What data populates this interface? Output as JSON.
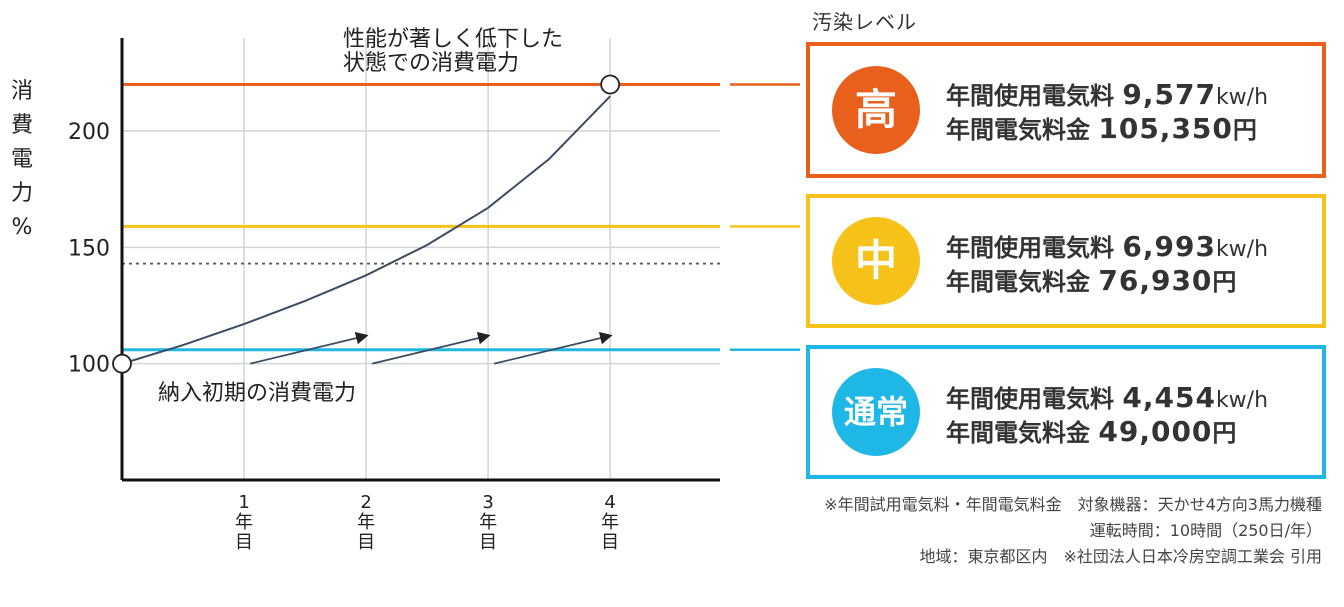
{
  "chart_data": {
    "type": "line",
    "ylabel": [
      "消",
      "費",
      "電",
      "力",
      "%"
    ],
    "yticks": [
      100,
      150,
      200
    ],
    "ylim": [
      50,
      240
    ],
    "xticks": [
      {
        "value": 1,
        "label": [
          "1",
          "年",
          "目"
        ]
      },
      {
        "value": 2,
        "label": [
          "2",
          "年",
          "目"
        ]
      },
      {
        "value": 3,
        "label": [
          "3",
          "年",
          "目"
        ]
      },
      {
        "value": 4,
        "label": [
          "4",
          "年",
          "目"
        ]
      }
    ],
    "xlim": [
      0,
      4.9
    ],
    "series": [
      {
        "x": [
          0,
          0.5,
          1,
          1.5,
          2,
          2.5,
          3,
          3.5,
          4
        ],
        "y": [
          100,
          108,
          117,
          127,
          138,
          151,
          167,
          188,
          215
        ],
        "color": "#3b4d63"
      }
    ],
    "reference_lines": [
      {
        "y": 220,
        "color": "#e8601c",
        "style": "solid"
      },
      {
        "y": 159,
        "color": "#f6c21a",
        "style": "solid"
      },
      {
        "y": 143,
        "color": "#555555",
        "style": "dotted"
      },
      {
        "y": 106,
        "color": "#1fb8e6",
        "style": "solid"
      }
    ],
    "arrows": [
      {
        "x1": 1.05,
        "y1": 100,
        "x2": 2.0,
        "y2": 112
      },
      {
        "x1": 2.05,
        "y1": 100,
        "x2": 3.0,
        "y2": 112
      },
      {
        "x1": 3.05,
        "y1": 100,
        "x2": 4.0,
        "y2": 112
      }
    ],
    "annotations": {
      "top": [
        "性能が著しく低下した",
        "状態での消費電力"
      ],
      "bottom": "納入初期の消費電力"
    },
    "markers": [
      {
        "x": 0,
        "y": 100
      },
      {
        "x": 4,
        "y": 220
      }
    ]
  },
  "panel": {
    "title": "汚染レベル",
    "levels": [
      {
        "badge": "高",
        "color": "#e8601c",
        "usage_label": "年間使用電気料",
        "usage_value": "9,577",
        "usage_unit": "kw/h",
        "cost_label": "年間電気料金",
        "cost_value": "105,350",
        "cost_unit": "円"
      },
      {
        "badge": "中",
        "color": "#f6c21a",
        "usage_label": "年間使用電気料",
        "usage_value": "6,993",
        "usage_unit": "kw/h",
        "cost_label": "年間電気料金",
        "cost_value": "76,930",
        "cost_unit": "円"
      },
      {
        "badge": "通常",
        "color": "#1fb8e6",
        "usage_label": "年間使用電気料",
        "usage_value": "4,454",
        "usage_unit": "kw/h",
        "cost_label": "年間電気料金",
        "cost_value": "49,000",
        "cost_unit": "円"
      }
    ]
  },
  "notes": [
    "※年間試用電気料・年間電気料金　対象機器：天かせ4方向3馬力機種",
    "運転時間：10時間（250日/年）",
    "地域：東京都区内　※社団法人日本冷房空調工業会 引用"
  ]
}
